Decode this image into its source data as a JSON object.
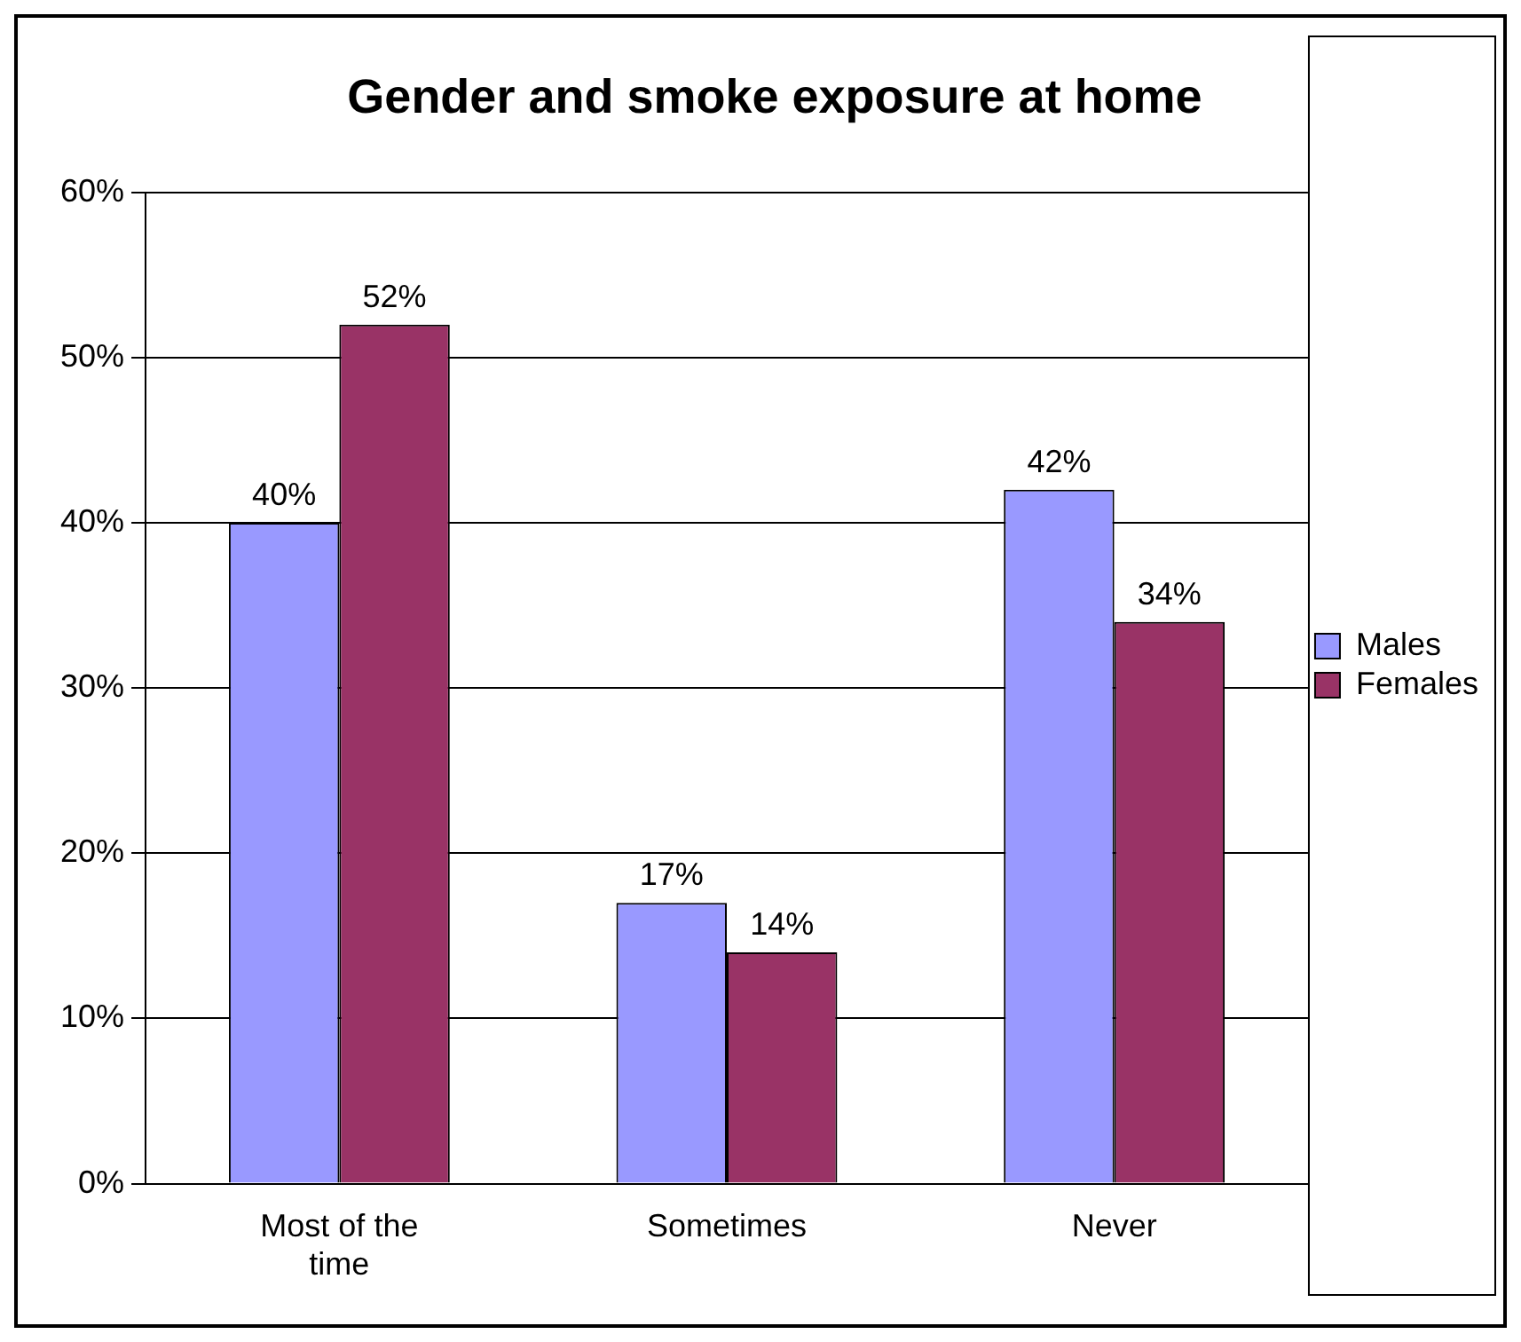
{
  "chart_data": {
    "type": "bar",
    "title": "Gender and smoke exposure at home",
    "categories": [
      "Most of the time",
      "Sometimes",
      "Never"
    ],
    "series": [
      {
        "name": "Males",
        "color": "#9999ff",
        "values": [
          40,
          17,
          42
        ],
        "value_labels": [
          "40%",
          "17%",
          "42%"
        ]
      },
      {
        "name": "Females",
        "color": "#993366",
        "values": [
          52,
          14,
          34
        ],
        "value_labels": [
          "52%",
          "14%",
          "34%"
        ]
      }
    ],
    "ylim": [
      0,
      60
    ],
    "yticks": [
      {
        "value": 0,
        "label": "0%"
      },
      {
        "value": 10,
        "label": "10%"
      },
      {
        "value": 20,
        "label": "20%"
      },
      {
        "value": 30,
        "label": "30%"
      },
      {
        "value": 40,
        "label": "40%"
      },
      {
        "value": 50,
        "label": "50%"
      },
      {
        "value": 60,
        "label": "60%"
      }
    ],
    "grid": "y",
    "legend": "right"
  }
}
